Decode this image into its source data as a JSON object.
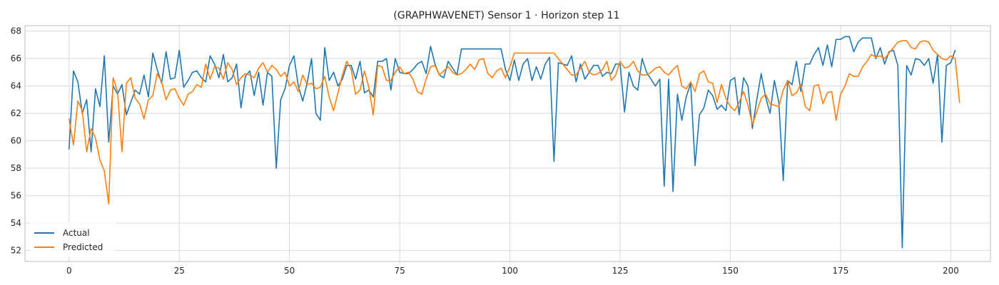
{
  "colors": {
    "actual": "#1f77b4",
    "predicted": "#ff7f0e",
    "grid": "#d9d9d9",
    "frame": "#bfbfbf",
    "background": "#ffffff",
    "text": "#262626"
  },
  "chart_data": {
    "type": "line",
    "title": "(GRAPHWAVENET) Sensor 1 · Horizon step 11",
    "xlabel": "",
    "ylabel": "",
    "xlim": [
      -10,
      209
    ],
    "ylim": [
      51.2,
      68.4
    ],
    "xticks": [
      0,
      25,
      50,
      75,
      100,
      125,
      150,
      175,
      200
    ],
    "xtick_labels": [
      "0",
      "25",
      "50",
      "75",
      "100",
      "125",
      "150",
      "175",
      "200"
    ],
    "yticks": [
      52,
      54,
      56,
      58,
      60,
      62,
      64,
      66,
      68
    ],
    "ytick_labels": [
      "52",
      "54",
      "56",
      "58",
      "60",
      "62",
      "64",
      "66",
      "68"
    ],
    "grid": true,
    "legend_position": "lower-left",
    "x_start": 0,
    "x_step": 1,
    "series": [
      {
        "name": "Actual",
        "values": [
          59.4,
          65.1,
          64.3,
          62.0,
          63.0,
          59.2,
          63.8,
          62.5,
          66.2,
          59.9,
          64.0,
          63.4,
          64.1,
          61.9,
          62.8,
          63.7,
          63.4,
          64.8,
          63.2,
          66.4,
          65.2,
          64.2,
          66.5,
          64.5,
          64.6,
          66.6,
          63.9,
          64.4,
          65.0,
          65.1,
          64.6,
          64.3,
          66.2,
          65.6,
          64.6,
          66.3,
          64.3,
          64.6,
          65.6,
          62.4,
          64.7,
          65.1,
          63.3,
          65.0,
          62.6,
          65.0,
          64.7,
          58.0,
          63.0,
          63.8,
          65.5,
          66.2,
          64.0,
          62.9,
          64.2,
          66.0,
          62.0,
          61.5,
          66.8,
          64.4,
          65.0,
          64.0,
          64.5,
          65.5,
          65.5,
          64.5,
          65.8,
          63.5,
          63.7,
          63.2,
          65.8,
          65.8,
          66.0,
          63.7,
          66.0,
          65.0,
          64.9,
          64.9,
          65.2,
          65.6,
          65.8,
          64.9,
          66.9,
          65.6,
          64.8,
          64.6,
          65.8,
          65.3,
          64.8,
          66.7,
          66.7,
          66.7,
          66.7,
          66.7,
          66.7,
          66.7,
          66.7,
          66.7,
          66.7,
          65.2,
          64.4,
          65.9,
          64.4,
          65.6,
          66.0,
          64.4,
          65.4,
          64.5,
          65.6,
          66.1,
          58.5,
          65.7,
          65.6,
          65.5,
          66.2,
          64.3,
          65.6,
          64.5,
          65.0,
          65.5,
          65.5,
          64.7,
          65.0,
          64.9,
          65.6,
          65.6,
          62.1,
          65.0,
          64.0,
          63.7,
          66.0,
          65.0,
          64.5,
          64.0,
          64.5,
          56.7,
          64.5,
          56.3,
          63.4,
          61.5,
          63.2,
          64.2,
          58.2,
          61.9,
          62.4,
          63.7,
          63.3,
          62.3,
          62.6,
          62.2,
          64.4,
          64.6,
          61.9,
          64.6,
          64.0,
          60.9,
          63.0,
          64.9,
          63.2,
          62.0,
          64.4,
          62.8,
          57.1,
          64.4,
          64.1,
          65.8,
          63.6,
          65.6,
          65.6,
          66.3,
          66.8,
          65.5,
          67.0,
          65.4,
          67.4,
          67.4,
          67.6,
          67.6,
          66.5,
          67.2,
          67.5,
          67.5,
          67.5,
          66.0,
          66.8,
          65.6,
          66.5,
          66.6,
          65.5,
          52.2,
          65.5,
          64.8,
          66.0,
          65.9,
          65.5,
          66.0,
          64.2,
          66.3,
          59.9,
          65.5,
          65.7,
          66.6
        ]
      },
      {
        "name": "Predicted",
        "values": [
          61.6,
          59.7,
          62.9,
          62.2,
          59.2,
          60.9,
          60.2,
          58.6,
          57.8,
          55.4,
          64.6,
          63.6,
          59.2,
          64.2,
          64.6,
          63.1,
          62.7,
          61.6,
          63.0,
          63.3,
          64.9,
          64.3,
          63.0,
          63.7,
          63.8,
          63.1,
          62.6,
          63.4,
          63.6,
          64.1,
          63.9,
          65.6,
          64.5,
          65.4,
          65.3,
          64.5,
          65.7,
          65.2,
          64.1,
          64.6,
          64.9,
          64.8,
          64.6,
          65.3,
          65.7,
          65.0,
          65.5,
          65.2,
          64.7,
          65.0,
          64.0,
          64.3,
          63.6,
          64.8,
          64.1,
          64.2,
          63.8,
          63.9,
          64.7,
          63.2,
          62.2,
          63.5,
          64.8,
          65.8,
          65.2,
          63.4,
          63.7,
          65.1,
          63.9,
          61.9,
          65.5,
          65.4,
          64.4,
          64.4,
          65.0,
          65.4,
          64.9,
          65.0,
          64.5,
          63.6,
          63.4,
          64.5,
          65.4,
          65.5,
          64.8,
          65.1,
          65.4,
          65.0,
          64.8,
          64.9,
          65.2,
          65.6,
          65.2,
          65.9,
          66.0,
          64.9,
          64.6,
          65.1,
          65.3,
          64.6,
          65.4,
          66.4,
          66.4,
          66.4,
          66.4,
          66.4,
          66.4,
          66.4,
          66.4,
          66.4,
          66.4,
          66.0,
          65.6,
          65.2,
          64.8,
          64.8,
          65.3,
          65.8,
          65.0,
          64.8,
          64.9,
          65.2,
          65.8,
          64.4,
          64.8,
          65.8,
          65.3,
          65.4,
          65.8,
          65.1,
          64.8,
          64.8,
          65.0,
          65.3,
          65.4,
          65.0,
          64.8,
          65.2,
          65.5,
          64.0,
          63.8,
          64.3,
          63.6,
          64.9,
          65.1,
          64.3,
          64.2,
          62.8,
          64.1,
          63.1,
          62.5,
          62.2,
          62.8,
          63.6,
          62.6,
          61.2,
          62.1,
          63.1,
          63.4,
          62.7,
          62.6,
          62.5,
          63.7,
          64.4,
          63.3,
          63.5,
          64.1,
          62.5,
          62.2,
          64.0,
          64.1,
          62.7,
          63.5,
          63.6,
          61.5,
          63.4,
          64.0,
          64.9,
          64.7,
          64.7,
          65.4,
          65.8,
          66.3,
          66.1,
          66.2,
          66.0,
          66.4,
          66.8,
          67.2,
          67.3,
          67.3,
          66.8,
          66.7,
          67.2,
          67.3,
          67.2,
          66.6,
          66.3,
          66.0,
          65.9,
          66.2,
          66.0,
          62.8
        ]
      }
    ]
  }
}
